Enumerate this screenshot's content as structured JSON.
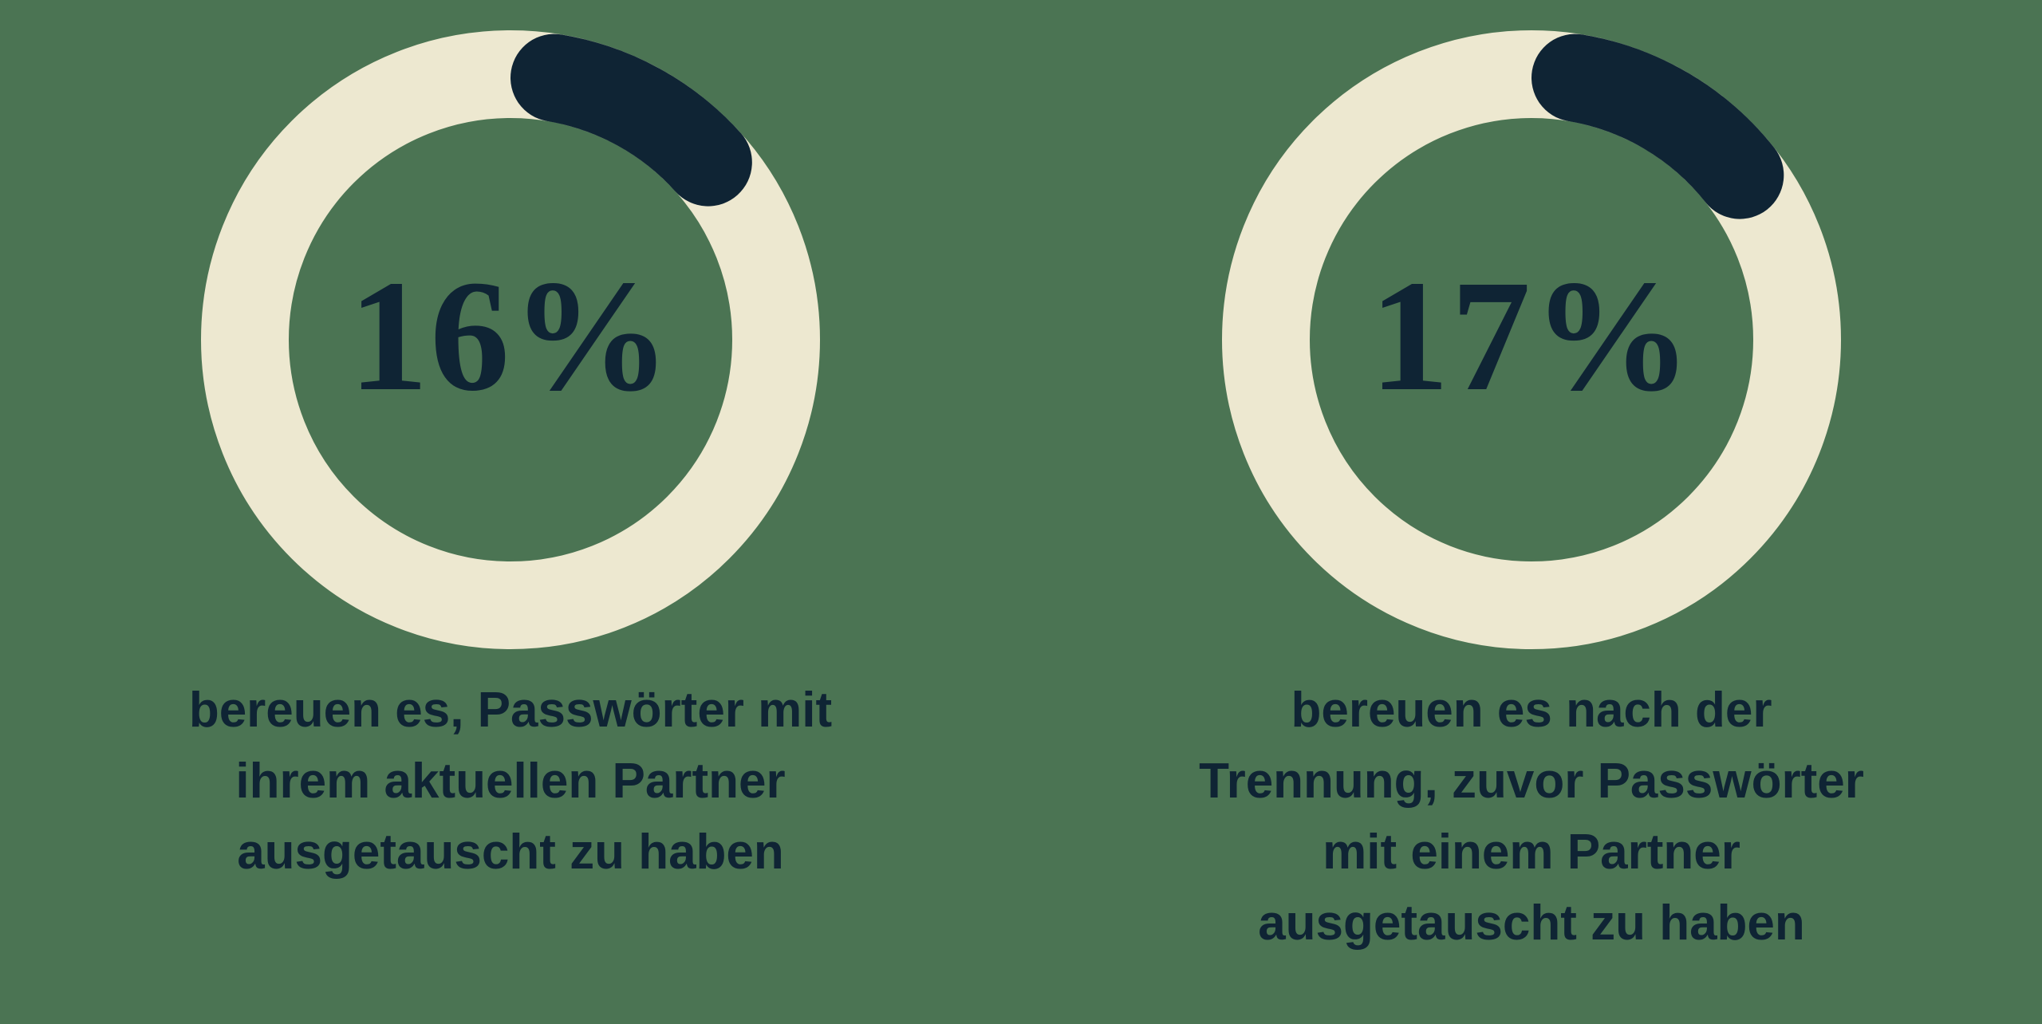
{
  "colors": {
    "background": "#4B7453",
    "ring": "#EDE8D0",
    "arc": "#0F2434",
    "text": "#0F2434"
  },
  "chart_data": [
    {
      "type": "pie",
      "variant": "donut-progress",
      "value": 16,
      "max": 100,
      "unit": "%",
      "label": "16%",
      "caption": "bereuen es, Passwörter mit ihrem aktuellen Partner ausgetauscht zu haben",
      "caption_lines": [
        "bereuen es, Passwörter mit",
        "ihrem aktuellen Partner",
        "ausgetauscht zu haben"
      ]
    },
    {
      "type": "pie",
      "variant": "donut-progress",
      "value": 17,
      "max": 100,
      "unit": "%",
      "label": "17%",
      "caption": "bereuen es nach der Trennung, zuvor Passwörter mit einem Partner ausgetauscht zu haben",
      "caption_lines": [
        "bereuen es nach der",
        "Trennung, zuvor Passwörter",
        "mit einem Partner",
        "ausgetauscht zu haben"
      ]
    }
  ]
}
